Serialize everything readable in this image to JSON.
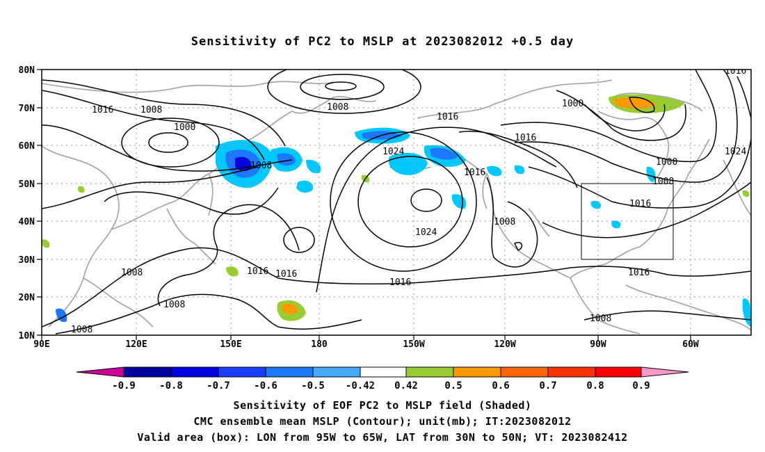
{
  "title": "Sensitivity of PC2 to MSLP at 2023082012 +0.5 day",
  "colors": {
    "contour": "#000000",
    "coast": "#a0a0a0",
    "grid": "#909090",
    "box": "#000000"
  },
  "map": {
    "lon_range": [
      "90E",
      "50W"
    ],
    "lat_range": [
      "10N",
      "80N"
    ],
    "lat_ticks": [
      "80N",
      "70N",
      "60N",
      "50N",
      "40N",
      "30N",
      "20N",
      "10N"
    ],
    "lon_ticks": [
      "90E",
      "120E",
      "150E",
      "180",
      "150W",
      "120W",
      "90W",
      "60W"
    ],
    "valid_box": {
      "lon_from": "95W",
      "lon_to": "65W",
      "lat_from": "30N",
      "lat_to": "50N"
    },
    "contour_labels": [
      "1016",
      "1008",
      "1000",
      "1008",
      "1008",
      "1016",
      "1024",
      "1016",
      "1000",
      "1008",
      "1016",
      "1016",
      "1024",
      "1008",
      "1016",
      "1016",
      "1008",
      "1016",
      "1008",
      "1008",
      "1016",
      "1024"
    ]
  },
  "colorbar": {
    "labels": [
      "-0.9",
      "-0.8",
      "-0.7",
      "-0.6",
      "-0.5",
      "-0.42",
      "0.42",
      "0.5",
      "0.6",
      "0.7",
      "0.8",
      "0.9"
    ],
    "colors": [
      "#cc0099",
      "#0000a0",
      "#0000e0",
      "#1a3cff",
      "#1e78ff",
      "#46aaff",
      "#00c8ff",
      "#ffffff",
      "#99cc33",
      "#ff9900",
      "#ff6600",
      "#ff3300",
      "#ff0000",
      "#ff99cc"
    ]
  },
  "captions": {
    "line1": "Sensitivity of EOF PC2 to MSLP field (Shaded)",
    "line2": "CMC ensemble mean MSLP (Contour); unit(mb); IT:2023082012",
    "line3": "Valid area (box): LON from 95W to 65W, LAT from 30N to 50N; VT: 2023082412"
  }
}
